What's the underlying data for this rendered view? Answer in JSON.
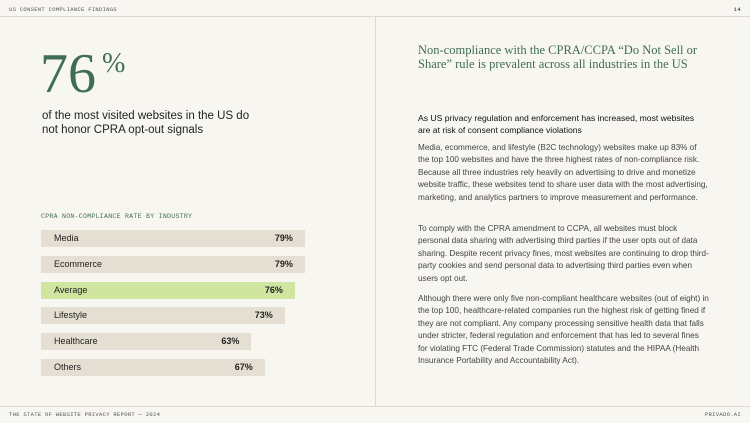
{
  "header": {
    "section": "US CONSENT COMPLIANCE FINDINGS",
    "page": "14"
  },
  "footer": {
    "report": "THE STATE OF WEBSITE PRIVACY REPORT — 2024",
    "brand": "PRIVADO.AI"
  },
  "stat": {
    "number": "76",
    "unit": "%",
    "caption": "of the most visited websites in the US do not honor CPRA opt-out signals"
  },
  "chart": {
    "type": "bar",
    "title": "CPRA NON-COMPLIANCE RATE BY INDUSTRY",
    "categories": [
      "Media",
      "Ecommerce",
      "Average",
      "Lifestyle",
      "Healthcare",
      "Others"
    ],
    "values": [
      79,
      79,
      76,
      73,
      63,
      67
    ],
    "value_labels": [
      "79%",
      "79%",
      "76%",
      "73%",
      "63%",
      "67%"
    ],
    "colors": [
      "#e4dfd2",
      "#e4dfd2",
      "#cfe5a0",
      "#e4dfd2",
      "#e4dfd2",
      "#e4dfd2"
    ],
    "xlim": [
      0,
      100
    ]
  },
  "article": {
    "heading": "Non-compliance with the CPRA/CCPA “Do Not Sell or Share” rule is prevalent across all industries in the US",
    "lead": "As US privacy regulation and enforcement has increased, most websites are at risk of consent compliance violations",
    "paragraphs": [
      "Media, ecommerce, and lifestyle (B2C technology) websites make up 83% of the top 100 websites and have the three highest rates of non-compliance risk. Because all three industries rely heavily on advertising to drive and monetize website traffic, these websites tend to share user data with the most advertising, marketing, and analytics partners to improve measurement and performance.",
      "To comply with the CPRA amendment to CCPA, all websites must block personal data sharing with advertising third parties if the user opts out of data sharing. Despite recent privacy fines, most websites are continuing to drop third-party cookies and send personal data to advertising third parties even when users opt out.",
      "Although there were only five non-compliant healthcare websites (out of eight) in the top 100, healthcare-related companies run the highest risk of getting fined if they are not compliant. Any company processing sensitive health data that falls under stricter, federal regulation and enforcement that has led to several fines for violating FTC (Federal Trade Commission) statutes and the HIPAA (Health Insurance Portability and Accountability Act)."
    ]
  }
}
